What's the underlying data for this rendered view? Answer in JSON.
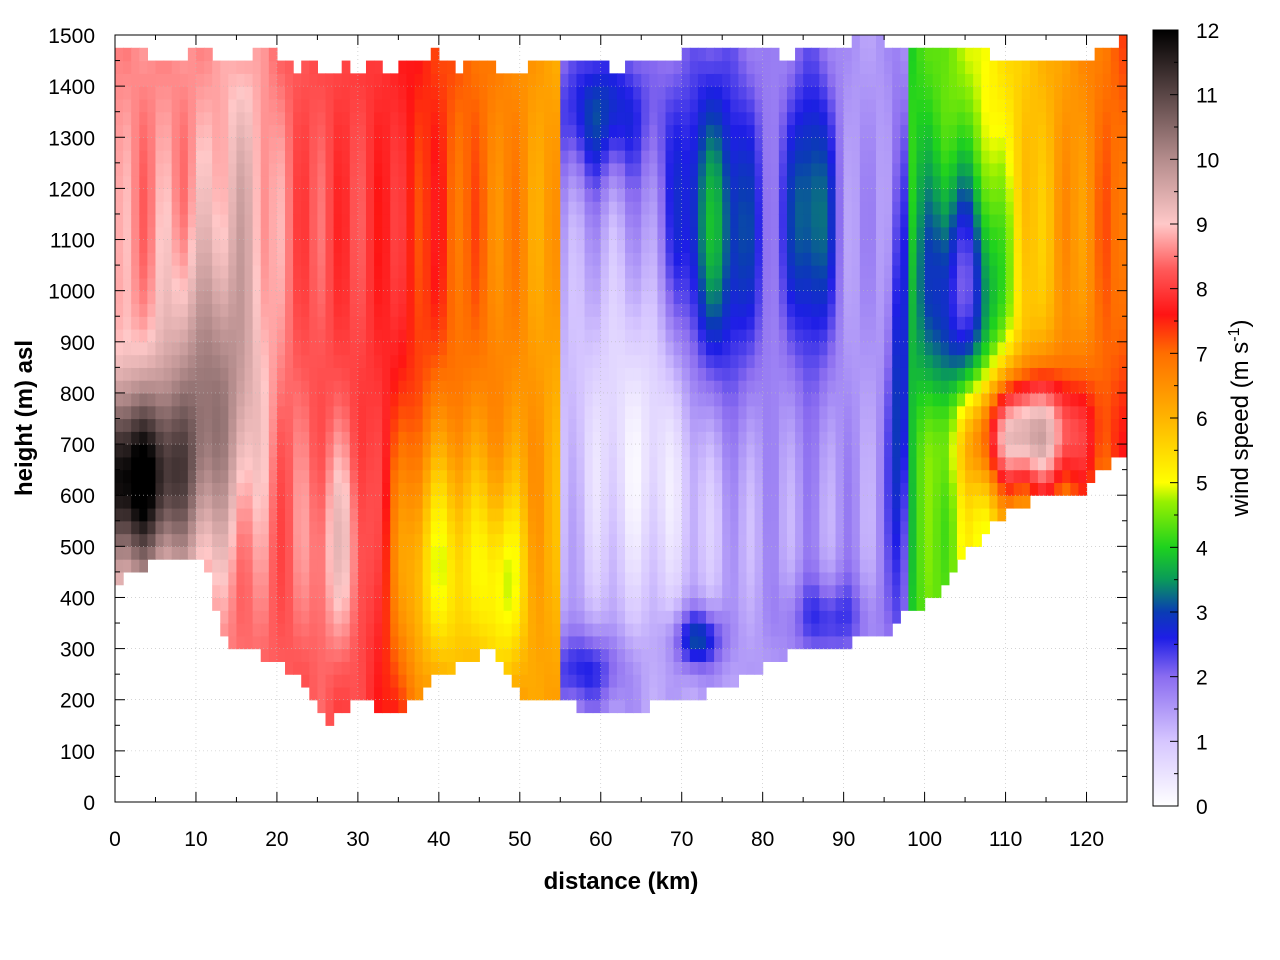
{
  "chart_data": {
    "type": "heatmap",
    "title": "",
    "xlabel": "distance (km)",
    "ylabel": "height (m) asl",
    "colorbar_label": "wind speed (m s-1)",
    "colorbar_label_parts": {
      "base": "wind speed (m s",
      "sup": "-1",
      "close": ")"
    },
    "xlim": [
      0,
      125
    ],
    "ylim": [
      0,
      1500
    ],
    "clim": [
      0,
      12
    ],
    "x_ticks": [
      "0",
      "10",
      "20",
      "30",
      "40",
      "50",
      "60",
      "70",
      "80",
      "90",
      "100",
      "110",
      "120"
    ],
    "y_ticks": [
      "0",
      "100",
      "200",
      "300",
      "400",
      "500",
      "600",
      "700",
      "800",
      "900",
      "1000",
      "1100",
      "1200",
      "1300",
      "1400",
      "1500"
    ],
    "c_ticks": [
      "0",
      "1",
      "2",
      "3",
      "4",
      "5",
      "6",
      "7",
      "8",
      "9",
      "10",
      "11",
      "12"
    ],
    "grid": true,
    "colormap": [
      {
        "value": 0,
        "color": "#ffffff"
      },
      {
        "value": 1,
        "color": "#d6c6ff"
      },
      {
        "value": 2,
        "color": "#8a6cf0"
      },
      {
        "value": 2.6,
        "color": "#1e1ee6"
      },
      {
        "value": 3,
        "color": "#0a3cb4"
      },
      {
        "value": 3.5,
        "color": "#0a9a5a"
      },
      {
        "value": 4,
        "color": "#1ed21e"
      },
      {
        "value": 4.7,
        "color": "#96f000"
      },
      {
        "value": 5,
        "color": "#ffff00"
      },
      {
        "value": 6,
        "color": "#ffb400"
      },
      {
        "value": 7,
        "color": "#ff6e00"
      },
      {
        "value": 7.6,
        "color": "#ff1414"
      },
      {
        "value": 8.3,
        "color": "#ff5a5a"
      },
      {
        "value": 9,
        "color": "#ffc8c8"
      },
      {
        "value": 10,
        "color": "#b48c8c"
      },
      {
        "value": 11,
        "color": "#5a4646"
      },
      {
        "value": 12,
        "color": "#000000"
      }
    ],
    "terrain": {
      "x": [
        0,
        3,
        6,
        9,
        11,
        12,
        13,
        15,
        18,
        21,
        24,
        26,
        28,
        30,
        33,
        35,
        38,
        41,
        44,
        46,
        48,
        50,
        55,
        60,
        62,
        65,
        70,
        75,
        80,
        85,
        90,
        95,
        98,
        100,
        103,
        105,
        108,
        110,
        113,
        116,
        118,
        120,
        122,
        125
      ],
      "y": [
        420,
        460,
        470,
        480,
        480,
        440,
        320,
        300,
        290,
        270,
        220,
        150,
        180,
        200,
        180,
        160,
        220,
        260,
        270,
        300,
        260,
        210,
        200,
        175,
        170,
        185,
        200,
        220,
        260,
        300,
        310,
        330,
        370,
        390,
        430,
        480,
        540,
        560,
        590,
        610,
        600,
        610,
        650,
        690
      ]
    },
    "top_boundary": {
      "x": [
        0,
        2,
        4,
        6,
        8,
        10,
        12,
        14,
        16,
        18,
        20,
        22,
        24,
        26,
        28,
        30,
        32,
        34,
        36,
        38,
        40,
        42,
        44,
        46,
        48,
        50,
        52,
        54,
        56,
        58,
        60,
        62,
        64,
        66,
        68,
        70,
        72,
        74,
        76,
        78,
        80,
        82,
        84,
        86,
        88,
        90,
        92,
        94,
        96,
        98,
        100,
        102,
        104,
        106,
        108,
        110,
        112,
        114,
        116,
        118,
        120,
        122,
        124,
        125
      ],
      "y": [
        1460,
        1470,
        1460,
        1455,
        1450,
        1480,
        1460,
        1440,
        1450,
        1470,
        1460,
        1430,
        1450,
        1420,
        1440,
        1430,
        1450,
        1430,
        1450,
        1440,
        1470,
        1430,
        1440,
        1450,
        1420,
        1430,
        1440,
        1440,
        1450,
        1440,
        1440,
        1430,
        1440,
        1450,
        1460,
        1460,
        1470,
        1470,
        1480,
        1460,
        1470,
        1460,
        1460,
        1470,
        1470,
        1480,
        1500,
        1500,
        1480,
        1460,
        1470,
        1470,
        1460,
        1470,
        1460,
        1450,
        1460,
        1450,
        1440,
        1440,
        1450,
        1470,
        1490,
        1500
      ]
    },
    "wind_speed_regimes": [
      {
        "x_range": [
          0,
          10
        ],
        "description": "peak",
        "max_value": 12,
        "height_of_peak": 620
      },
      {
        "x_range": [
          10,
          33
        ],
        "max_value": 10
      },
      {
        "x_range": [
          33,
          55
        ],
        "max_value": 7.5
      },
      {
        "x_range": [
          55,
          98
        ],
        "min_value": 0.5
      },
      {
        "x_range": [
          100,
          125
        ],
        "max_value": 8.5,
        "height_of_peak": 720
      }
    ]
  }
}
